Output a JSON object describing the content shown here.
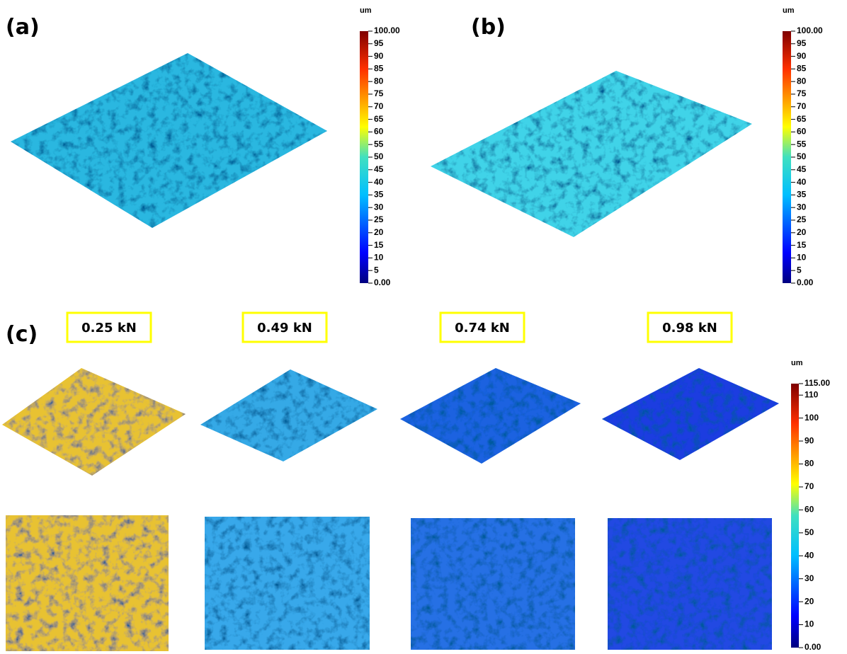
{
  "panels": [
    {
      "label": "(a)"
    },
    {
      "label": "(b)"
    },
    {
      "label": "(c)"
    }
  ],
  "loads": [
    "0.25 kN",
    "0.49 kN",
    "0.74 kN",
    "0.98 kN"
  ],
  "colorbars": [
    {
      "unit": "um",
      "lim": [
        0,
        100
      ],
      "ticks": [
        {
          "value": 0,
          "label": "0.00"
        },
        5,
        10,
        15,
        20,
        25,
        30,
        35,
        40,
        45,
        50,
        55,
        60,
        65,
        70,
        75,
        80,
        85,
        90,
        95,
        {
          "value": 100,
          "label": "100.00"
        }
      ]
    },
    {
      "unit": "um",
      "lim": [
        0,
        100
      ],
      "ticks": [
        {
          "value": 0,
          "label": "0.00"
        },
        5,
        10,
        15,
        20,
        25,
        30,
        35,
        40,
        45,
        50,
        55,
        60,
        65,
        70,
        75,
        80,
        85,
        90,
        95,
        {
          "value": 100,
          "label": "100.00"
        }
      ]
    },
    {
      "unit": "um",
      "lim": [
        0,
        115
      ],
      "ticks": [
        {
          "value": 0,
          "label": "0.00"
        },
        10,
        20,
        30,
        40,
        50,
        60,
        70,
        80,
        90,
        100,
        110,
        {
          "value": 115,
          "label": "115.00"
        }
      ]
    }
  ]
}
